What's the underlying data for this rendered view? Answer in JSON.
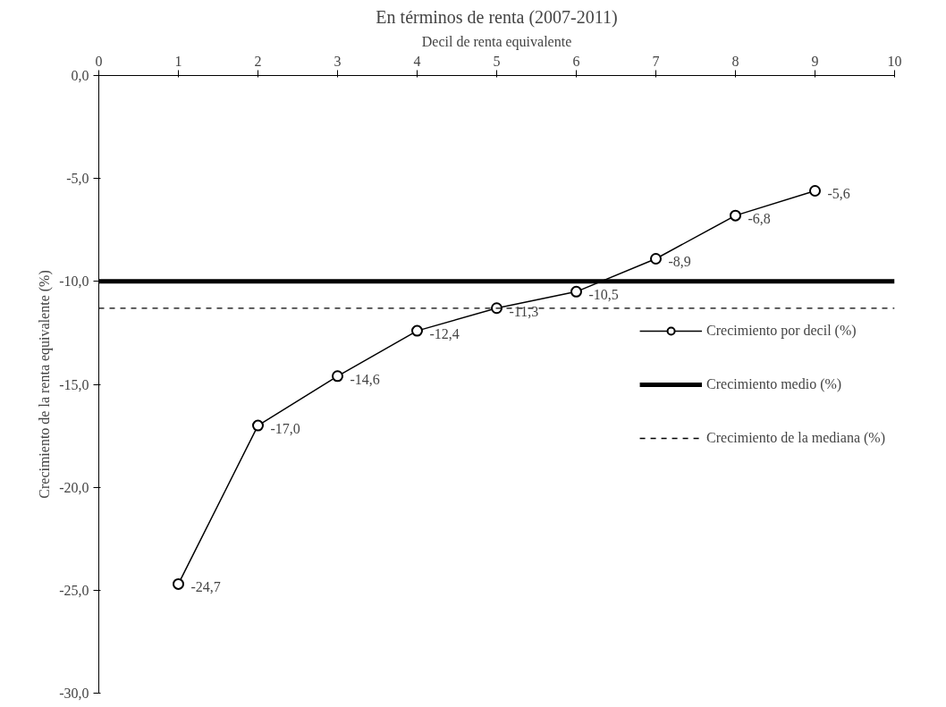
{
  "chart_data": {
    "type": "line",
    "title": "En términos de renta (2007-2011)",
    "xlabel": "Decil de renta equivalente",
    "ylabel": "Crecimiento de la renta equivalente (%)",
    "x": [
      1,
      2,
      3,
      4,
      5,
      6,
      7,
      8,
      9
    ],
    "series": [
      {
        "name": "Crecimiento por decil (%)",
        "color": "#000000",
        "values": [
          -24.7,
          -17.0,
          -14.6,
          -12.4,
          -11.3,
          -10.5,
          -8.9,
          -6.8,
          -5.6
        ],
        "value_labels": [
          "-24,7",
          "-17,0",
          "-14,6",
          "-12,4",
          "-11,3",
          "-10,5",
          "-8,9",
          "-6,8",
          "-5,6"
        ]
      }
    ],
    "ref_lines": [
      {
        "axis": "y",
        "value": -10.0,
        "label": "Crecimiento medio (%)",
        "color": "#000000",
        "line_style": "solid"
      },
      {
        "axis": "y",
        "value": -11.3,
        "label": "Crecimiento de la mediana (%)",
        "color": "#000000",
        "line_style": "dashed"
      }
    ],
    "xlim": [
      0,
      10
    ],
    "xticks": [
      0,
      1,
      2,
      3,
      4,
      5,
      6,
      7,
      8,
      9,
      10
    ],
    "ylim": [
      -30,
      0
    ],
    "yticks": [
      {
        "value": 0,
        "label": "0,0"
      },
      {
        "value": -5,
        "label": "-5,0"
      },
      {
        "value": -10,
        "label": "-10,0"
      },
      {
        "value": -15,
        "label": "-15,0"
      },
      {
        "value": -20,
        "label": "-20,0"
      },
      {
        "value": -25,
        "label": "-25,0"
      },
      {
        "value": -30,
        "label": "-30,0"
      }
    ],
    "marker": "circle",
    "grid": false,
    "legend": "right"
  }
}
